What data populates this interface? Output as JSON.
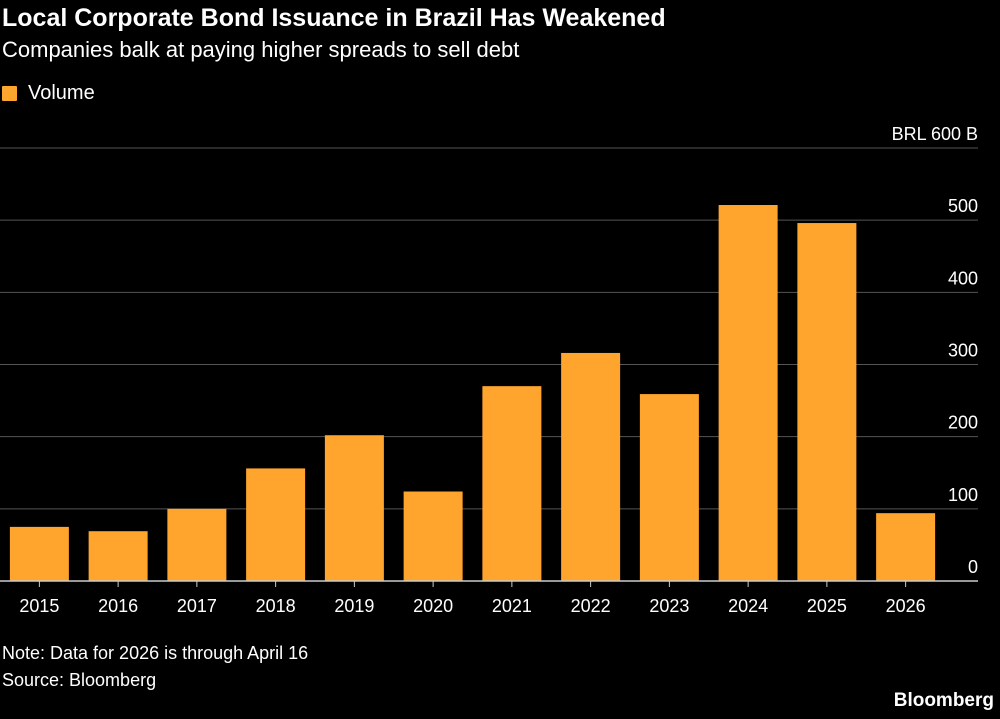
{
  "title": "Local Corporate Bond Issuance in Brazil Has Weakened",
  "subtitle": "Companies balk at paying higher spreads to sell debt",
  "legend": {
    "label": "Volume"
  },
  "colors": {
    "bar": "#FFA52E",
    "grid": "#555555",
    "axis": "#cccccc",
    "text": "#ffffff",
    "background": "#000000"
  },
  "chart_data": {
    "type": "bar",
    "categories": [
      "2015",
      "2016",
      "2017",
      "2018",
      "2019",
      "2020",
      "2021",
      "2022",
      "2023",
      "2024",
      "2025",
      "2026"
    ],
    "series": [
      {
        "name": "Volume",
        "values": [
          75,
          69,
          100,
          156,
          202,
          124,
          270,
          316,
          259,
          521,
          496,
          94
        ]
      }
    ],
    "ylim": [
      0,
      600
    ],
    "yticks": [
      0,
      100,
      200,
      300,
      400,
      500,
      600
    ],
    "ytick_labels": [
      "0",
      "100",
      "200",
      "300",
      "400",
      "500",
      "BRL 600 B"
    ],
    "ylabel": "",
    "xlabel": "",
    "grid": true,
    "axis_side": "right"
  },
  "note": "Note: Data for 2026 is through April 16",
  "source": "Source: Bloomberg",
  "brand": "Bloomberg"
}
